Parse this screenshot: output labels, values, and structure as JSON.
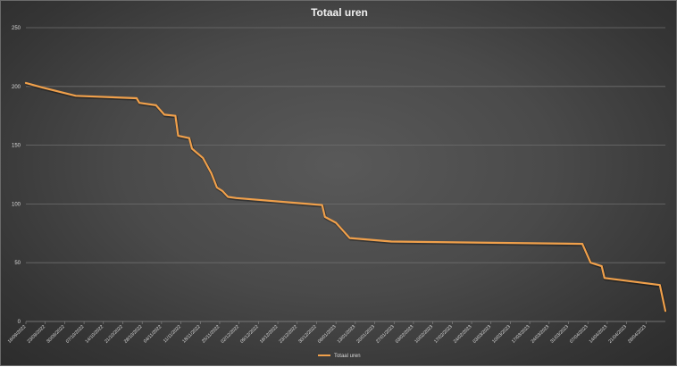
{
  "chart_data": {
    "type": "line",
    "title": "Totaal uren",
    "ylim": [
      0,
      250
    ],
    "y_ticks": [
      "0",
      "50",
      "100",
      "150",
      "200",
      "250"
    ],
    "grid": "horizontal",
    "legend_position": "bottom",
    "line_color": "#f0a04b",
    "x_tick_labels": [
      "16/09/2022",
      "23/09/2022",
      "30/09/2022",
      "07/10/2022",
      "14/10/2022",
      "21/10/2022",
      "28/10/2022",
      "04/11/2022",
      "11/11/2022",
      "18/11/2022",
      "25/11/2022",
      "02/12/2022",
      "09/12/2022",
      "16/12/2022",
      "23/12/2022",
      "30/12/2022",
      "06/01/2023",
      "13/01/2023",
      "20/01/2023",
      "27/01/2023",
      "03/02/2023",
      "10/02/2023",
      "17/02/2023",
      "24/02/2023",
      "03/03/2023",
      "10/03/2023",
      "17/03/2023",
      "24/03/2023",
      "31/03/2023",
      "07/04/2023",
      "14/04/2023",
      "21/04/2023",
      "28/04/2023"
    ],
    "series": [
      {
        "name": "Totaal uren",
        "points": [
          [
            "2022-09-16",
            203
          ],
          [
            "2022-09-22",
            199
          ],
          [
            "2022-10-04",
            192
          ],
          [
            "2022-10-26",
            190
          ],
          [
            "2022-10-27",
            186
          ],
          [
            "2022-11-02",
            184
          ],
          [
            "2022-11-05",
            176
          ],
          [
            "2022-11-09",
            175
          ],
          [
            "2022-11-10",
            158
          ],
          [
            "2022-11-14",
            156
          ],
          [
            "2022-11-15",
            147
          ],
          [
            "2022-11-19",
            139
          ],
          [
            "2022-11-22",
            126
          ],
          [
            "2022-11-24",
            114
          ],
          [
            "2022-11-26",
            111
          ],
          [
            "2022-11-28",
            106
          ],
          [
            "2022-12-01",
            105
          ],
          [
            "2022-12-27",
            100
          ],
          [
            "2023-01-01",
            99
          ],
          [
            "2023-01-02",
            89
          ],
          [
            "2023-01-06",
            84
          ],
          [
            "2023-01-11",
            71
          ],
          [
            "2023-01-26",
            68
          ],
          [
            "2023-04-05",
            66
          ],
          [
            "2023-04-08",
            50
          ],
          [
            "2023-04-12",
            47
          ],
          [
            "2023-04-13",
            37
          ],
          [
            "2023-05-03",
            31
          ],
          [
            "2023-05-05",
            9
          ]
        ]
      }
    ]
  }
}
